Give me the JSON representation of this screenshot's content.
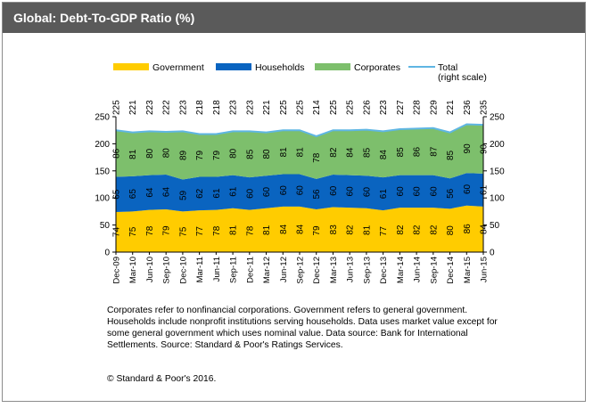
{
  "header": {
    "title": "Global: Debt-To-GDP  Ratio (%)"
  },
  "notes": "Corporates refer to nonfinancial corporations. Government refers to general  government. Households include nonprofit institutions serving households. Data   uses market value except for some general government which uses nominal   value. Data source: Bank for International Settlements. Source: Standard &  Poor's Ratings Services.",
  "copyright": "© Standard & Poor's 2016.",
  "chart_data": {
    "type": "area",
    "stacked": true,
    "categories": [
      "Dec-09",
      "Mar-10",
      "Jun-10",
      "Sep-10",
      "Dec-10",
      "Mar-11",
      "Jun-11",
      "Sep-11",
      "Dec-11",
      "Mar-12",
      "Jun-12",
      "Sep-12",
      "Dec-12",
      "Mar-13",
      "Jun-13",
      "Sep-13",
      "Dec-13",
      "Mar-14",
      "Jun-14",
      "Sep-14",
      "Dec-14",
      "Mar-15",
      "Jun-15"
    ],
    "series": [
      {
        "name": "Government",
        "color": "#ffcc00",
        "values": [
          74,
          75,
          78,
          79,
          75,
          77,
          78,
          81,
          78,
          81,
          84,
          84,
          79,
          83,
          82,
          81,
          77,
          82,
          82,
          82,
          80,
          86,
          84
        ]
      },
      {
        "name": "Households",
        "color": "#0a64c0",
        "values": [
          65,
          65,
          64,
          64,
          59,
          62,
          61,
          61,
          60,
          60,
          60,
          60,
          56,
          60,
          60,
          60,
          61,
          60,
          60,
          60,
          56,
          60,
          61
        ]
      },
      {
        "name": "Corporates",
        "color": "#7dbf6c",
        "values": [
          86,
          81,
          80,
          80,
          89,
          79,
          79,
          80,
          85,
          80,
          81,
          81,
          78,
          82,
          84,
          85,
          84,
          85,
          86,
          87,
          85,
          90,
          90
        ]
      }
    ],
    "total": {
      "name": "Total\n(right scale)",
      "color": "#5fb6e3",
      "values": [
        225,
        221,
        223,
        222,
        223,
        218,
        218,
        223,
        223,
        221,
        225,
        225,
        214,
        225,
        225,
        226,
        223,
        227,
        228,
        229,
        221,
        236,
        235
      ]
    },
    "y_left": {
      "min": 0,
      "max": 250,
      "ticks": [
        0,
        50,
        100,
        150,
        200,
        250
      ]
    },
    "y_right": {
      "min": 0,
      "max": 250,
      "ticks": [
        0,
        50,
        100,
        150,
        200,
        250
      ]
    },
    "legend_position": "top",
    "grid": false
  }
}
